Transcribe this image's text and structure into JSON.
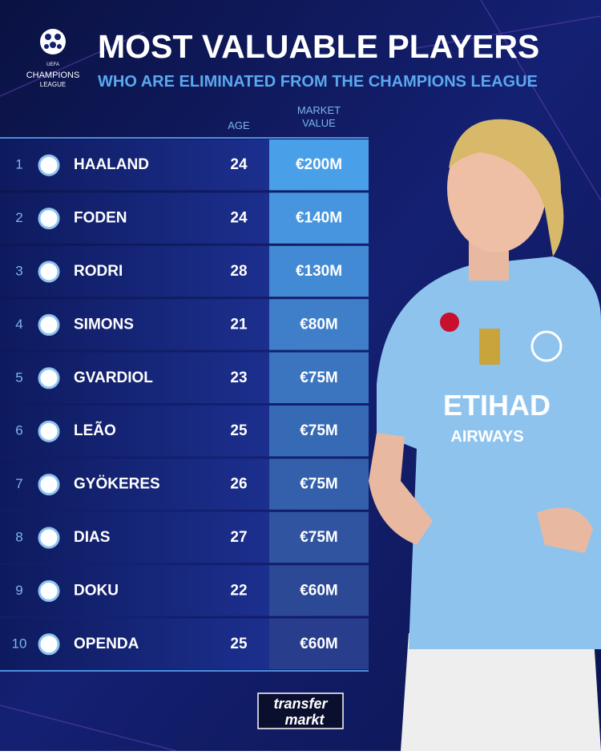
{
  "header": {
    "logo": [
      "UEFA",
      "CHAMPIONS",
      "LEAGUE"
    ],
    "title": "MOST VALUABLE PLAYERS",
    "subtitle": "WHO ARE ELIMINATED FROM THE CHAMPIONS LEAGUE"
  },
  "table": {
    "columns": [
      "AGE",
      "MARKET VALUE"
    ],
    "rows": [
      [
        1,
        "HAALAND",
        24,
        "€200M"
      ],
      [
        2,
        "FODEN",
        24,
        "€140M"
      ],
      [
        3,
        "RODRI",
        28,
        "€130M"
      ],
      [
        4,
        "SIMONS",
        21,
        "€80M"
      ],
      [
        5,
        "GVARDIOL",
        23,
        "€75M"
      ],
      [
        6,
        "LEÃO",
        25,
        "€75M"
      ],
      [
        7,
        "GYÖKERES",
        26,
        "€75M"
      ],
      [
        8,
        "DIAS",
        27,
        "€75M"
      ],
      [
        9,
        "DOKU",
        22,
        "€60M"
      ],
      [
        10,
        "OPENDA",
        25,
        "€60M"
      ]
    ]
  },
  "photo": {
    "sponsor": "ETIHAD",
    "sponsor_sub": "AIRWAYS"
  },
  "footer": {
    "brand": [
      "transfer",
      "markt"
    ]
  }
}
